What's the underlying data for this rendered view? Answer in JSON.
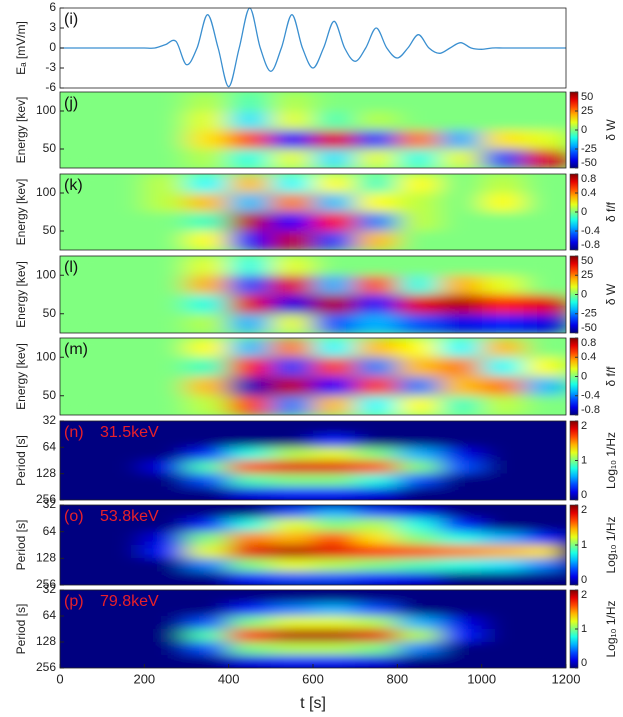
{
  "chart_data": [
    {
      "type": "line",
      "label": "(i)",
      "ylabel": "Eₐ [mV/m]",
      "color": "#3a8fd0",
      "xlim": [
        0,
        1200
      ],
      "ylim": [
        -6,
        6
      ],
      "yticks": [
        -6,
        -3,
        0,
        3,
        6
      ],
      "x": [
        0,
        25,
        50,
        75,
        100,
        125,
        150,
        175,
        200,
        225,
        250,
        275,
        300,
        325,
        350,
        375,
        400,
        425,
        450,
        475,
        500,
        525,
        550,
        575,
        600,
        625,
        650,
        675,
        700,
        725,
        750,
        775,
        800,
        825,
        850,
        875,
        900,
        925,
        950,
        975,
        1000,
        1025,
        1050,
        1075,
        1100,
        1125,
        1150,
        1175,
        1200
      ],
      "values": [
        0,
        0,
        0,
        0,
        0,
        0,
        0,
        0,
        0,
        0,
        0.5,
        1,
        -2.5,
        0,
        5,
        0,
        -5.8,
        0,
        6,
        0,
        -3.5,
        0,
        5,
        0,
        -3,
        0,
        4,
        0,
        -2,
        0,
        3,
        0,
        -1.5,
        0,
        2,
        0,
        -0.8,
        0,
        0.8,
        0,
        -0.2,
        0,
        0,
        0,
        0,
        0,
        0,
        0,
        0
      ]
    },
    {
      "type": "heatmap",
      "label": "(j)",
      "ylabel": "Energy [kev]",
      "xlim": [
        0,
        1200
      ],
      "ylim": [
        25,
        125
      ],
      "yticks": [
        50,
        100
      ],
      "xbins": [
        0,
        100,
        200,
        300,
        400,
        500,
        600,
        700,
        800,
        900,
        1000,
        1100,
        1200
      ],
      "ybins": [
        125,
        100,
        75,
        50,
        25
      ],
      "z": [
        [
          0,
          0,
          0,
          5,
          -5,
          5,
          0,
          0,
          0,
          0,
          0,
          0
        ],
        [
          0,
          0,
          0,
          10,
          -15,
          10,
          -5,
          5,
          0,
          0,
          0,
          0
        ],
        [
          0,
          0,
          0,
          15,
          30,
          -35,
          40,
          -30,
          25,
          -20,
          15,
          10
        ],
        [
          0,
          0,
          0,
          5,
          -10,
          10,
          -15,
          10,
          -10,
          10,
          -30,
          40
        ]
      ],
      "colorbar": {
        "label": "δ W",
        "lim": [
          -50,
          50
        ],
        "ticks": [
          50,
          25,
          0,
          -25,
          -50
        ]
      }
    },
    {
      "type": "heatmap",
      "label": "(k)",
      "ylabel": "Energy [kev]",
      "xlim": [
        0,
        1200
      ],
      "ylim": [
        25,
        125
      ],
      "yticks": [
        50,
        100
      ],
      "xbins": [
        0,
        100,
        200,
        300,
        400,
        500,
        600,
        700,
        800,
        900,
        1000,
        1100,
        1200
      ],
      "ybins": [
        125,
        100,
        75,
        50,
        25
      ],
      "z": [
        [
          0,
          0,
          0.1,
          -0.2,
          0.3,
          -0.2,
          0.2,
          -0.1,
          0.2,
          0,
          0.1,
          0
        ],
        [
          0,
          0,
          0.1,
          0.3,
          -0.3,
          0.4,
          -0.3,
          0.2,
          0.1,
          0,
          0.2,
          0
        ],
        [
          0,
          0,
          0,
          -0.1,
          0.7,
          -0.6,
          0.6,
          -0.4,
          0.1,
          0,
          0,
          0
        ],
        [
          0,
          0,
          0,
          0.2,
          -0.6,
          0.7,
          -0.5,
          0.3,
          0,
          0,
          0,
          0
        ]
      ],
      "colorbar": {
        "label": "δ f/f",
        "lim": [
          -0.8,
          0.8
        ],
        "ticks": [
          0.8,
          0.4,
          0,
          -0.4,
          -0.8
        ]
      }
    },
    {
      "type": "heatmap",
      "label": "(l)",
      "ylabel": "Energy [kev]",
      "xlim": [
        0,
        1200
      ],
      "ylim": [
        25,
        125
      ],
      "yticks": [
        50,
        100
      ],
      "xbins": [
        0,
        100,
        200,
        300,
        400,
        500,
        600,
        700,
        800,
        900,
        1000,
        1100,
        1200
      ],
      "ybins": [
        125,
        100,
        75,
        50,
        25
      ],
      "z": [
        [
          0,
          0,
          0,
          10,
          -10,
          10,
          0,
          0,
          0,
          0,
          0,
          0
        ],
        [
          0,
          0,
          0,
          20,
          -30,
          40,
          -20,
          30,
          -10,
          20,
          10,
          0
        ],
        [
          0,
          0,
          0,
          -10,
          40,
          -40,
          45,
          -35,
          40,
          45,
          35,
          40
        ],
        [
          0,
          0,
          0,
          5,
          -20,
          10,
          -30,
          -20,
          -30,
          -40,
          -35,
          -40
        ]
      ],
      "colorbar": {
        "label": "δ W",
        "lim": [
          -50,
          50
        ],
        "ticks": [
          50,
          25,
          0,
          -25,
          -50
        ]
      }
    },
    {
      "type": "heatmap",
      "label": "(m)",
      "ylabel": "Energy [kev]",
      "xlim": [
        0,
        1200
      ],
      "ylim": [
        25,
        125
      ],
      "yticks": [
        50,
        100
      ],
      "xbins": [
        0,
        100,
        200,
        300,
        400,
        500,
        600,
        700,
        800,
        900,
        1000,
        1100,
        1200
      ],
      "ybins": [
        125,
        100,
        75,
        50,
        25
      ],
      "z": [
        [
          0,
          0,
          0,
          0.2,
          -0.3,
          0.4,
          -0.2,
          0.3,
          0.2,
          -0.2,
          0.3,
          0
        ],
        [
          0,
          0,
          0,
          -0.1,
          0.6,
          -0.5,
          0.5,
          -0.4,
          0.3,
          0.4,
          -0.2,
          0.2
        ],
        [
          0,
          0,
          0,
          0.3,
          -0.7,
          0.7,
          -0.6,
          0.5,
          -0.4,
          0.3,
          0.4,
          -0.3
        ],
        [
          0,
          0,
          0,
          0.1,
          0.5,
          -0.4,
          0.3,
          -0.2,
          0.2,
          -0.1,
          0.1,
          0
        ]
      ],
      "colorbar": {
        "label": "δ f/f",
        "lim": [
          -0.8,
          0.8
        ],
        "ticks": [
          0.8,
          0.4,
          0,
          -0.4,
          -0.8
        ]
      }
    },
    {
      "type": "heatmap",
      "label": "(n)",
      "annotation": "31.5keV",
      "label_color": "#e8202a",
      "ylabel": "Period [s]",
      "xlim": [
        0,
        1200
      ],
      "ylim": [
        32,
        256
      ],
      "log_y": true,
      "y_inverted": true,
      "yticks": [
        32,
        64,
        128,
        256
      ],
      "xbins": [
        0,
        100,
        200,
        300,
        400,
        500,
        600,
        700,
        800,
        900,
        1000,
        1100,
        1200
      ],
      "ybins": [
        32,
        45,
        64,
        90,
        128,
        181,
        256
      ],
      "z": [
        [
          0,
          0,
          0,
          0,
          0,
          0,
          0,
          0,
          0,
          0,
          0,
          0
        ],
        [
          0,
          0,
          0,
          0,
          0,
          0,
          0.3,
          0,
          0,
          0,
          0,
          0
        ],
        [
          0,
          0,
          0,
          0.3,
          0.8,
          1.1,
          1.2,
          1.0,
          0.6,
          0.2,
          0,
          0
        ],
        [
          0,
          0,
          0.2,
          0.9,
          1.6,
          1.8,
          1.8,
          1.6,
          1.0,
          0.4,
          0,
          0
        ],
        [
          0,
          0,
          0,
          0.4,
          0.9,
          1.0,
          1.0,
          0.8,
          0.4,
          0,
          0,
          0
        ],
        [
          0,
          0,
          0,
          0,
          0.2,
          0.3,
          0.3,
          0.2,
          0,
          0,
          0,
          0
        ]
      ],
      "colorbar": {
        "label": "Log₁₀ 1/Hz",
        "lim": [
          0,
          2
        ],
        "ticks": [
          2,
          1,
          0
        ]
      }
    },
    {
      "type": "heatmap",
      "label": "(o)",
      "annotation": "53.8keV",
      "label_color": "#e8202a",
      "ylabel": "Period [s]",
      "xlim": [
        0,
        1200
      ],
      "ylim": [
        32,
        256
      ],
      "log_y": true,
      "y_inverted": true,
      "yticks": [
        32,
        64,
        128,
        256
      ],
      "xbins": [
        0,
        100,
        200,
        300,
        400,
        500,
        600,
        700,
        800,
        900,
        1000,
        1100,
        1200
      ],
      "ybins": [
        32,
        45,
        64,
        90,
        128,
        181,
        256
      ],
      "z": [
        [
          0,
          0,
          0,
          0,
          0,
          0.4,
          0.6,
          0.4,
          0.2,
          0,
          0,
          0
        ],
        [
          0,
          0,
          0,
          0.3,
          0.8,
          1.2,
          1.0,
          1.1,
          0.8,
          0.3,
          0,
          0
        ],
        [
          0,
          0,
          0.2,
          1.0,
          1.5,
          1.4,
          1.6,
          1.3,
          1.0,
          0.8,
          0.6,
          0.3
        ],
        [
          0,
          0,
          0.3,
          1.2,
          1.8,
          1.9,
          1.8,
          1.7,
          1.6,
          1.5,
          1.4,
          1.3
        ],
        [
          0,
          0,
          0,
          0.5,
          1.0,
          1.2,
          1.1,
          1.0,
          0.9,
          0.8,
          0.7,
          0.5
        ],
        [
          0,
          0,
          0,
          0,
          0.3,
          0.4,
          0.4,
          0.3,
          0.2,
          0,
          0,
          0
        ]
      ],
      "colorbar": {
        "label": "Log₁₀ 1/Hz",
        "lim": [
          0,
          2
        ],
        "ticks": [
          2,
          1,
          0
        ]
      }
    },
    {
      "type": "heatmap",
      "label": "(p)",
      "annotation": "79.8keV",
      "label_color": "#e8202a",
      "ylabel": "Period [s]",
      "xlim": [
        0,
        1200
      ],
      "ylim": [
        32,
        256
      ],
      "log_y": true,
      "y_inverted": true,
      "yticks": [
        32,
        64,
        128,
        256
      ],
      "xbins": [
        0,
        100,
        200,
        300,
        400,
        500,
        600,
        700,
        800,
        900,
        1000,
        1100,
        1200
      ],
      "ybins": [
        32,
        45,
        64,
        90,
        128,
        181,
        256
      ],
      "z": [
        [
          0,
          0,
          0,
          0,
          0,
          0,
          0,
          0,
          0,
          0,
          0,
          0
        ],
        [
          0,
          0,
          0,
          0,
          0.3,
          0.5,
          0.6,
          0.4,
          0,
          0,
          0,
          0
        ],
        [
          0,
          0,
          0,
          0.4,
          1.0,
          1.2,
          1.2,
          1.1,
          0.6,
          0.2,
          0,
          0
        ],
        [
          0,
          0,
          0,
          0.9,
          1.7,
          1.9,
          1.9,
          1.8,
          1.1,
          0.3,
          0,
          0
        ],
        [
          0,
          0,
          0,
          0.4,
          1.0,
          1.1,
          1.1,
          1.0,
          0.5,
          0,
          0,
          0
        ],
        [
          0,
          0,
          0,
          0,
          0.2,
          0.3,
          0.3,
          0.2,
          0,
          0,
          0,
          0
        ]
      ],
      "colorbar": {
        "label": "Log₁₀ 1/Hz",
        "lim": [
          0,
          2
        ],
        "ticks": [
          2,
          1,
          0
        ]
      },
      "xlabel": "t [s]",
      "xticks": [
        0,
        200,
        400,
        600,
        800,
        1000,
        1200
      ]
    }
  ]
}
